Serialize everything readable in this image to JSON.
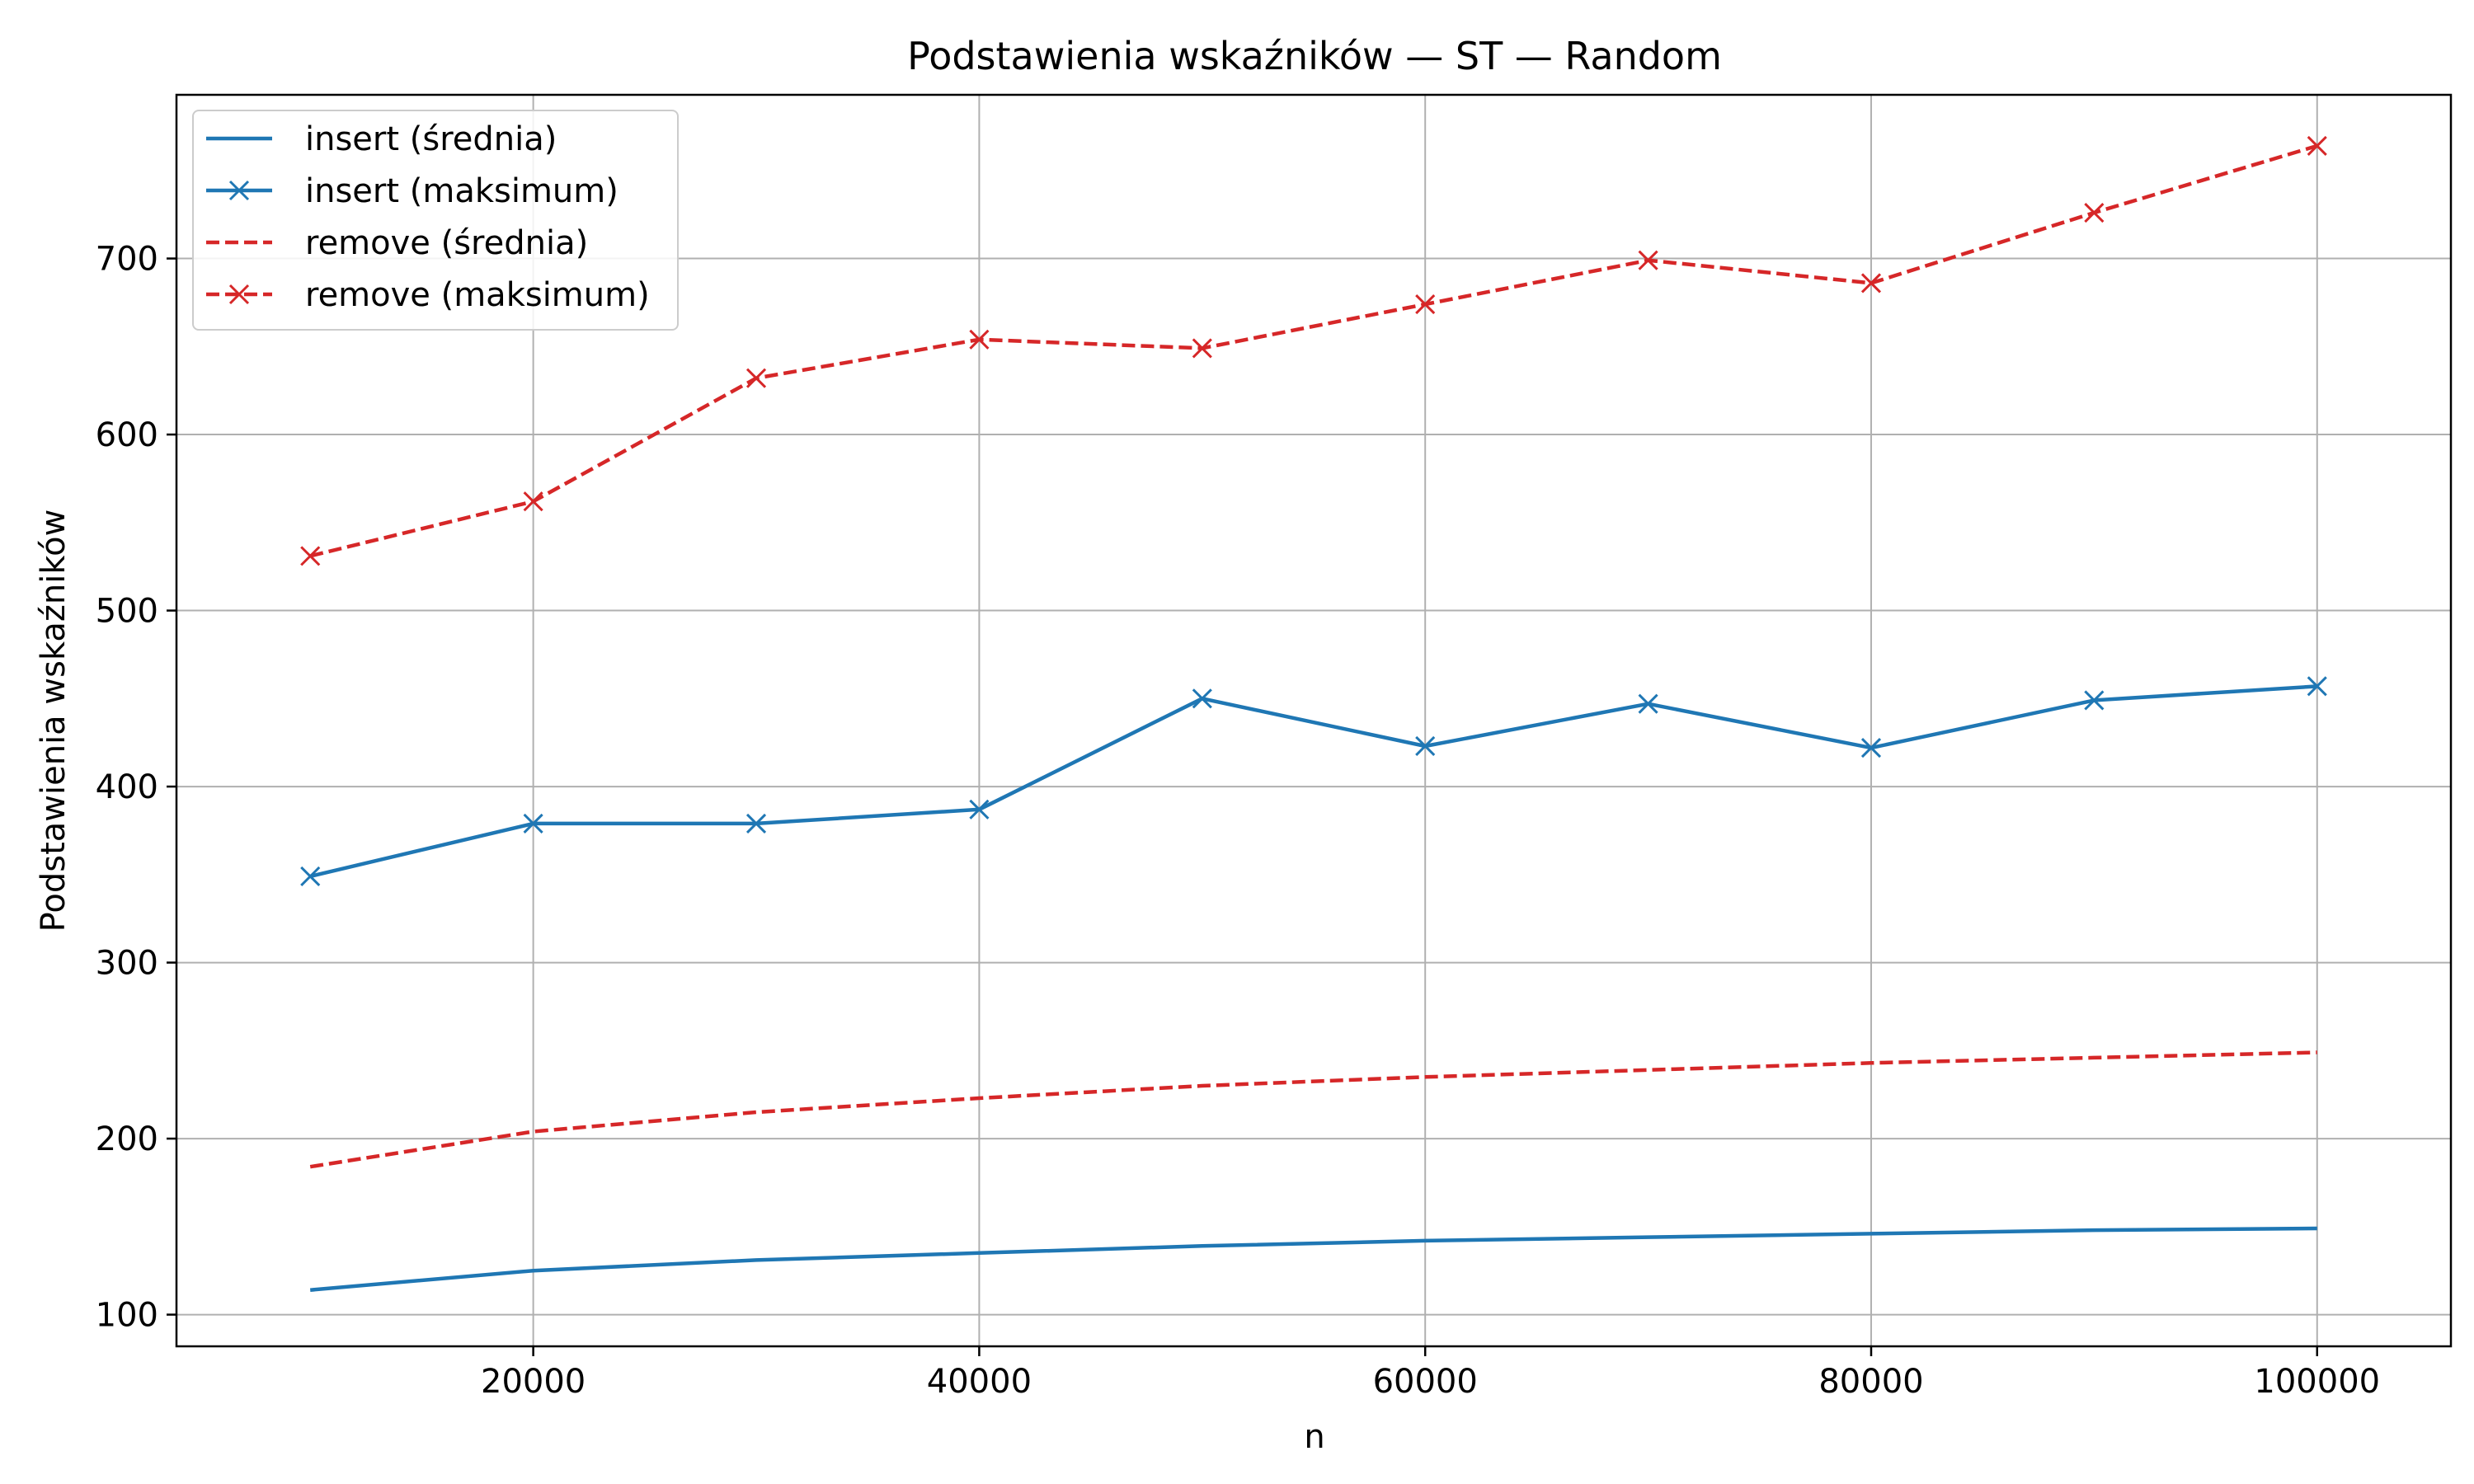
{
  "chart_data": {
    "type": "line",
    "title": "Podstawienia wskaźników — ST — Random",
    "xlabel": "n",
    "ylabel": "Podstawienia wskaźników",
    "x": [
      10000,
      20000,
      30000,
      40000,
      50000,
      60000,
      70000,
      80000,
      90000,
      100000
    ],
    "xlim": [
      4000,
      106000
    ],
    "ylim": [
      82,
      793
    ],
    "xticks": [
      20000,
      40000,
      60000,
      80000,
      100000
    ],
    "yticks": [
      100,
      200,
      300,
      400,
      500,
      600,
      700
    ],
    "grid": true,
    "legend_position": "top-left",
    "series": [
      {
        "name": "insert (średnia)",
        "color": "#1f77b4",
        "dashed": false,
        "marker": false,
        "values": [
          114,
          125,
          131,
          135,
          139,
          142,
          144,
          146,
          148,
          149
        ]
      },
      {
        "name": "insert (maksimum)",
        "color": "#1f77b4",
        "dashed": false,
        "marker": true,
        "values": [
          349,
          379,
          379,
          387,
          450,
          423,
          447,
          422,
          449,
          457
        ]
      },
      {
        "name": "remove (średnia)",
        "color": "#d62728",
        "dashed": true,
        "marker": false,
        "values": [
          184,
          204,
          215,
          223,
          230,
          235,
          239,
          243,
          246,
          249
        ]
      },
      {
        "name": "remove (maksimum)",
        "color": "#d62728",
        "dashed": true,
        "marker": true,
        "values": [
          531,
          562,
          632,
          654,
          649,
          674,
          699,
          686,
          726,
          764
        ]
      }
    ]
  }
}
